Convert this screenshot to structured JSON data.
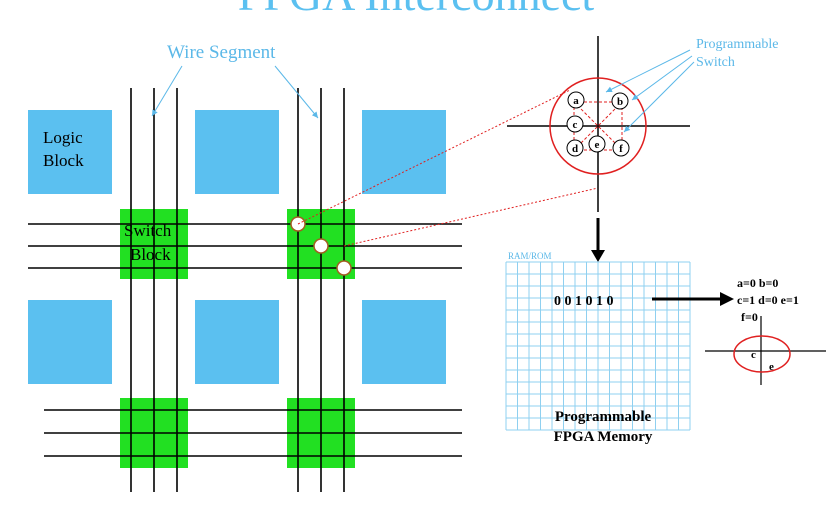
{
  "title": "FPGA Interconnect",
  "colors": {
    "logic_block": "#5bc0f0",
    "switch_block": "#22e022",
    "wire": "#000000",
    "label_blue": "#5bb8e8",
    "switch_red": "#e02020",
    "grid": "#8fd0f0"
  },
  "labels": {
    "wire_segment": "Wire Segment",
    "logic_block_line1": "Logic",
    "logic_block_line2": "Block",
    "switch_block_line1": "Switch",
    "switch_block_line2": "Block",
    "programmable_switch_line1": "Programmable",
    "programmable_switch_line2": "Switch",
    "ram_rom": "RAM/ROM",
    "memory_bits": "0 0 1 0 1 0",
    "memory_caption_line1": "Programmable",
    "memory_caption_line2": "FPGA Memory",
    "assign_line1": "a=0  b=0",
    "assign_line2": "c=1  d=0  e=1",
    "assign_line3": "f=0"
  },
  "switch_points": [
    "a",
    "b",
    "c",
    "d",
    "e",
    "f"
  ],
  "result_labels": [
    "c",
    "e"
  ],
  "icons": {
    "down_arrow": "arrow-down-icon",
    "right_arrow": "arrow-right-icon"
  }
}
